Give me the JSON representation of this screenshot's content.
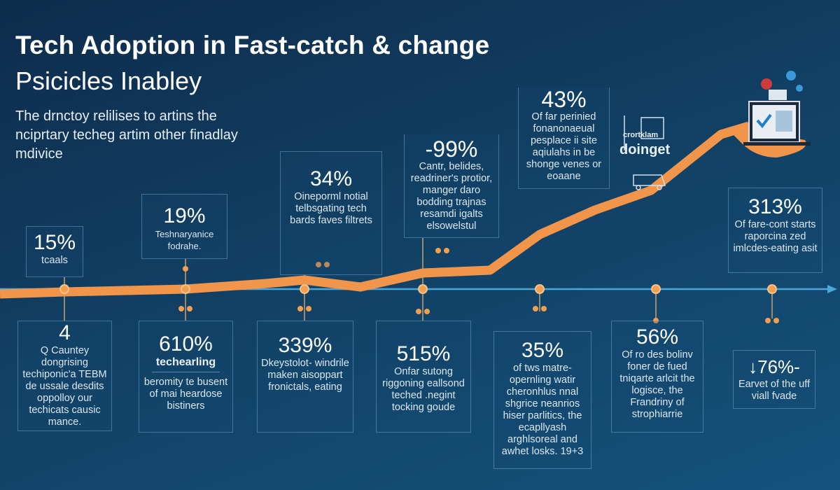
{
  "header": {
    "title": "Tech Adoption in Fast-catch & change",
    "subtitle": "Psicicles Inabley",
    "intro": "The drnctoy relilises to artins the nciprtary techeg artim other finadlay mdivice"
  },
  "colors": {
    "background": "#113f63",
    "trend_line": "#f0954a",
    "timeline": "#4aa8d8",
    "node": "#f0a050"
  },
  "top_stats": [
    {
      "value": "15%",
      "text": "tcaals"
    },
    {
      "value": "19%",
      "text": "Teshnaryanice fodrahe."
    },
    {
      "value": "34%",
      "text": "Oineporml notial telbsgating tech bards faves filtrets"
    },
    {
      "value": "-99%",
      "text": "Cantr, belides, readriner's protior, manger daro bodding trajnas resamdi igalts elsowelstul"
    },
    {
      "value": "43%",
      "text": "Of far perinied fonanonaeual pesplace ii site aqiulahs in be shonge venes or eoaane"
    },
    {
      "value": "313%",
      "text": "Of fare-cont starts raporcina zed imlcdes-eating asit"
    }
  ],
  "logo": {
    "top": "crortklam",
    "name": "doinget"
  },
  "bottom_stats": [
    {
      "value": "4",
      "heading": "",
      "text": "Q Cauntey dongrising techiponic'a TEBM de ussale desdits oppolloy our techicats causic mance."
    },
    {
      "value": "610%",
      "heading": "techearling",
      "text": "beromity te busent of mai heardose bistiners"
    },
    {
      "value": "339%",
      "heading": "",
      "text": "Dkeystolot- windrile maken aisoppart fronictals, eating"
    },
    {
      "value": "515%",
      "heading": "",
      "text": "Onfar sutong riggoning eallsond teched .negint tocking goude"
    },
    {
      "value": "35%",
      "heading": "",
      "text": "of tws matre- opernling watir cheronhlus nnal shgrice neanrios hiser parlitics, the ecapllyash arghlsoreal and awhet losks. 19+3"
    },
    {
      "value": "56%",
      "heading": "",
      "text": "Of ro des bolinv foner de fued tniqarte arlcit the logisce, the Frandriny of strophiarrie"
    },
    {
      "value": "↓76%-",
      "heading": "",
      "text": "Earvet of the uff viall fvade"
    }
  ],
  "icons": [
    "laptop-checkmark-icon",
    "hand-icon",
    "notification-icons",
    "cart-icon",
    "node-icon"
  ]
}
